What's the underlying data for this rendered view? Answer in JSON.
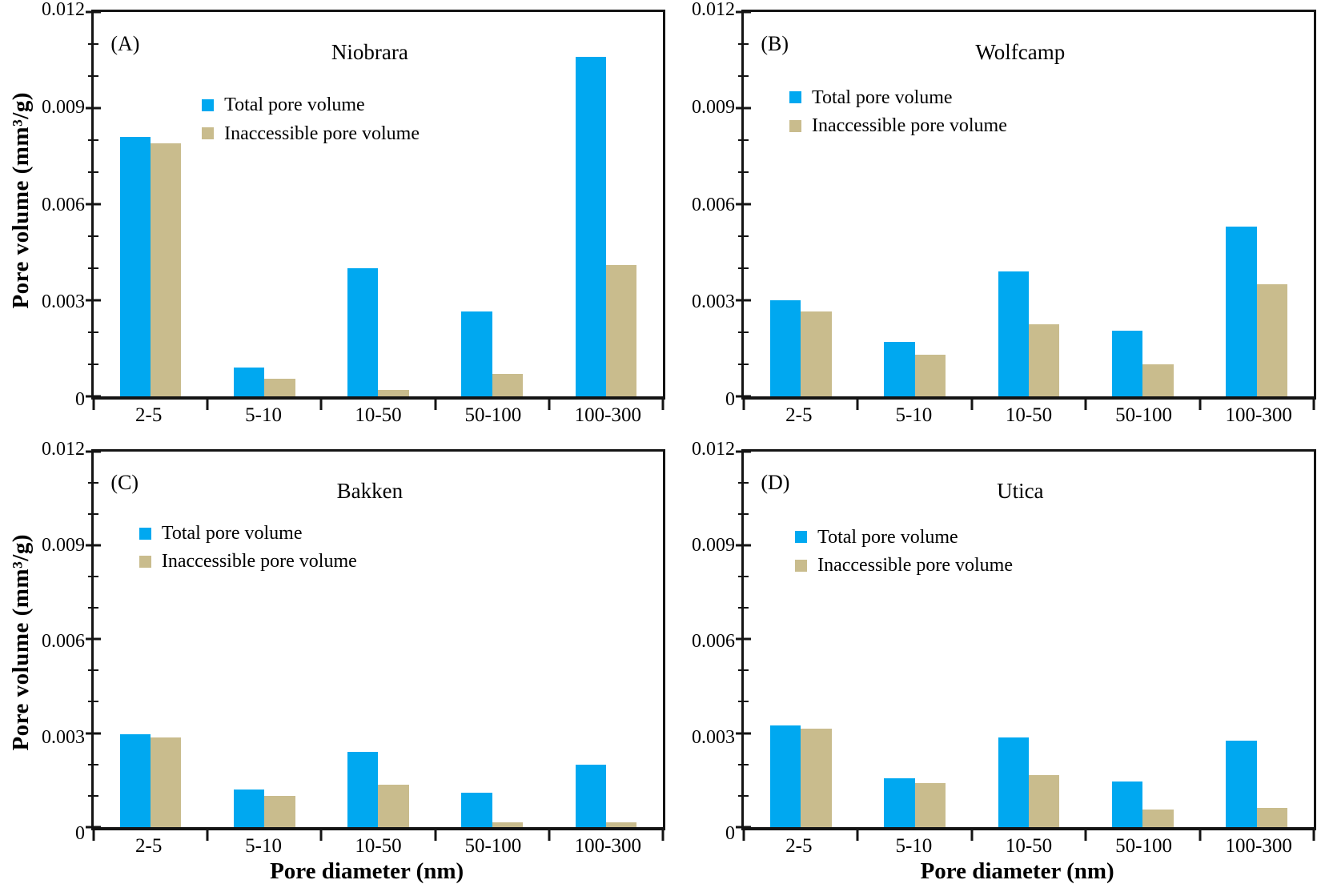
{
  "chart_data": {
    "type": "bar",
    "categories": [
      "2-5",
      "5-10",
      "10-50",
      "50-100",
      "100-300"
    ],
    "x_label": "Pore diameter (nm)",
    "y_label": "Pore volume (mm³/g)",
    "ylim": [
      0,
      0.012
    ],
    "y_major_ticks": [
      0,
      0.003,
      0.006,
      0.009,
      0.012
    ],
    "y_tick_labels": [
      "0",
      "0.003",
      "0.006",
      "0.009",
      "0.012"
    ],
    "y_minor_step": 0.001,
    "grid": false,
    "legend": {
      "position": "upper-left-inside",
      "entries": [
        {
          "name": "Total pore volume",
          "color": "#00A8F0"
        },
        {
          "name": "Inaccessible pore volume",
          "color": "#C9BC8D"
        }
      ]
    },
    "colors": {
      "total": "#00A8F0",
      "inaccessible": "#C9BC8D",
      "axis": "#141414"
    },
    "panels": [
      {
        "letter": "(A)",
        "title": "Niobrara",
        "series": [
          {
            "name": "Total pore volume",
            "values": [
              0.0081,
              0.0009,
              0.004,
              0.00265,
              0.0106
            ]
          },
          {
            "name": "Inaccessible pore volume",
            "values": [
              0.0079,
              0.00055,
              0.0002,
              0.0007,
              0.0041
            ]
          }
        ]
      },
      {
        "letter": "(B)",
        "title": "Wolfcamp",
        "series": [
          {
            "name": "Total pore volume",
            "values": [
              0.003,
              0.0017,
              0.0039,
              0.00205,
              0.0053
            ]
          },
          {
            "name": "Inaccessible pore volume",
            "values": [
              0.00265,
              0.0013,
              0.00225,
              0.001,
              0.0035
            ]
          }
        ]
      },
      {
        "letter": "(C)",
        "title": "Bakken",
        "series": [
          {
            "name": "Total pore volume",
            "values": [
              0.00295,
              0.0012,
              0.0024,
              0.0011,
              0.002
            ]
          },
          {
            "name": "Inaccessible pore volume",
            "values": [
              0.00285,
              0.001,
              0.00135,
              0.00015,
              0.00015
            ]
          }
        ]
      },
      {
        "letter": "(D)",
        "title": "Utica",
        "series": [
          {
            "name": "Total pore volume",
            "values": [
              0.00325,
              0.00155,
              0.00285,
              0.00145,
              0.00275
            ]
          },
          {
            "name": "Inaccessible pore volume",
            "values": [
              0.00315,
              0.0014,
              0.00165,
              0.00055,
              0.0006
            ]
          }
        ]
      }
    ]
  }
}
